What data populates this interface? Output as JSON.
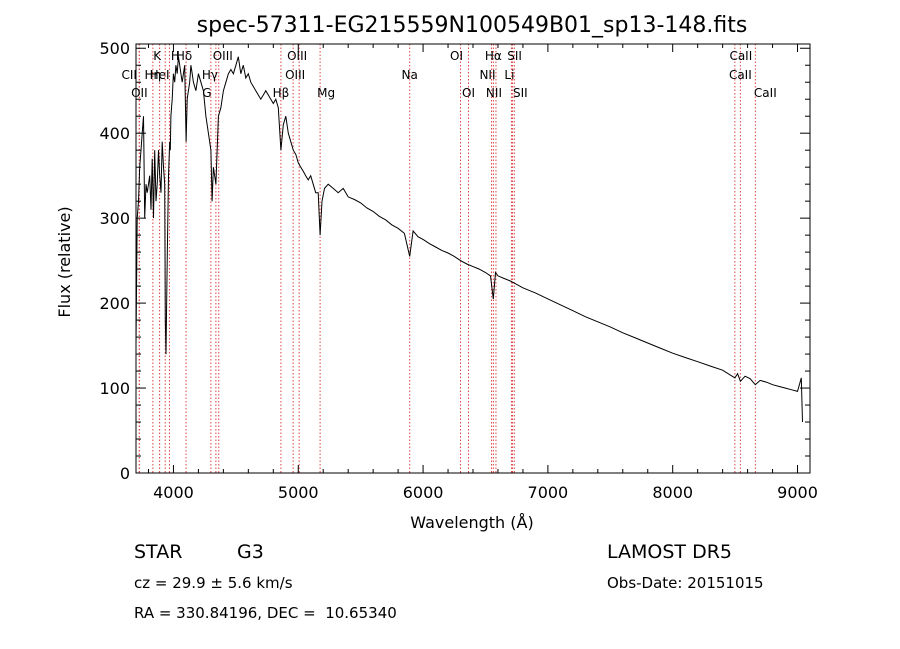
{
  "chart_data": {
    "type": "line",
    "title": "spec-57311-EG215559N100549B01_sp13-148.fits",
    "xlabel": "Wavelength (Å)",
    "ylabel": "Flux (relative)",
    "xlim": [
      3700,
      9100
    ],
    "ylim": [
      0,
      505
    ],
    "xticks": [
      4000,
      5000,
      6000,
      7000,
      8000,
      9000
    ],
    "yticks": [
      0,
      100,
      200,
      300,
      400,
      500
    ],
    "grid": false,
    "series": [
      {
        "color": "#000000",
        "x": [
          3700,
          3710,
          3720,
          3730,
          3740,
          3750,
          3760,
          3770,
          3780,
          3790,
          3800,
          3810,
          3820,
          3830,
          3840,
          3850,
          3860,
          3870,
          3880,
          3890,
          3900,
          3910,
          3920,
          3930,
          3935,
          3940,
          3950,
          3960,
          3970,
          3975,
          3980,
          3990,
          4000,
          4010,
          4020,
          4030,
          4040,
          4050,
          4060,
          4070,
          4080,
          4090,
          4101,
          4110,
          4120,
          4130,
          4140,
          4150,
          4160,
          4180,
          4200,
          4220,
          4240,
          4260,
          4280,
          4300,
          4310,
          4320,
          4340,
          4360,
          4380,
          4400,
          4420,
          4440,
          4460,
          4480,
          4500,
          4520,
          4540,
          4560,
          4580,
          4600,
          4620,
          4640,
          4660,
          4680,
          4700,
          4720,
          4740,
          4760,
          4780,
          4800,
          4820,
          4840,
          4861,
          4880,
          4900,
          4920,
          4940,
          4960,
          4980,
          5000,
          5020,
          5040,
          5060,
          5080,
          5100,
          5120,
          5140,
          5160,
          5175,
          5190,
          5210,
          5240,
          5280,
          5320,
          5360,
          5400,
          5450,
          5500,
          5550,
          5600,
          5650,
          5700,
          5750,
          5800,
          5850,
          5893,
          5920,
          5960,
          6000,
          6050,
          6100,
          6150,
          6200,
          6250,
          6300,
          6350,
          6400,
          6450,
          6500,
          6540,
          6563,
          6580,
          6600,
          6650,
          6700,
          6750,
          6800,
          6850,
          6900,
          7000,
          7100,
          7200,
          7300,
          7400,
          7500,
          7600,
          7700,
          7800,
          7900,
          8000,
          8100,
          8200,
          8300,
          8400,
          8498,
          8520,
          8542,
          8580,
          8620,
          8662,
          8700,
          8750,
          8800,
          8850,
          8900,
          8950,
          9000,
          9030,
          9040
        ],
        "values": [
          150,
          300,
          320,
          360,
          380,
          400,
          420,
          300,
          340,
          330,
          340,
          350,
          310,
          370,
          300,
          380,
          320,
          340,
          380,
          350,
          330,
          390,
          360,
          340,
          180,
          140,
          250,
          350,
          390,
          380,
          420,
          440,
          470,
          460,
          480,
          470,
          490,
          480,
          470,
          460,
          470,
          480,
          390,
          440,
          450,
          460,
          480,
          470,
          460,
          450,
          470,
          460,
          450,
          420,
          400,
          380,
          320,
          360,
          340,
          420,
          430,
          450,
          460,
          470,
          475,
          470,
          480,
          490,
          470,
          480,
          465,
          470,
          460,
          455,
          450,
          445,
          440,
          445,
          450,
          445,
          440,
          435,
          440,
          430,
          380,
          410,
          420,
          400,
          390,
          380,
          375,
          365,
          360,
          355,
          350,
          345,
          350,
          340,
          330,
          330,
          280,
          320,
          335,
          340,
          335,
          330,
          335,
          325,
          322,
          318,
          312,
          308,
          302,
          298,
          292,
          288,
          282,
          255,
          285,
          278,
          275,
          270,
          266,
          262,
          259,
          255,
          250,
          246,
          243,
          240,
          236,
          232,
          205,
          236,
          232,
          229,
          226,
          222,
          218,
          215,
          212,
          205,
          198,
          191,
          184,
          178,
          172,
          165,
          159,
          153,
          147,
          141,
          136,
          131,
          126,
          121,
          112,
          117,
          108,
          114,
          111,
          104,
          109,
          107,
          104,
          102,
          100,
          98,
          96,
          112,
          60
        ]
      }
    ],
    "line_markers": [
      {
        "label": "Hδ",
        "x": 4101
      },
      {
        "label": "K",
        "x": 3934
      },
      {
        "label": "H",
        "x": 3968
      },
      {
        "label": "CII",
        "x": 3726
      },
      {
        "label": "HeI",
        "x": 3889
      },
      {
        "label": "OII",
        "x": 3727
      },
      {
        "label": "Hη",
        "x": 3835
      },
      {
        "label": "Hγ",
        "x": 4340
      },
      {
        "label": "G",
        "x": 4300
      },
      {
        "label": "OIII",
        "x": 4363
      },
      {
        "label": "Hβ",
        "x": 4861
      },
      {
        "label": "OIII",
        "x": 4959
      },
      {
        "label": "OIII",
        "x": 5007
      },
      {
        "label": "Mg",
        "x": 5175
      },
      {
        "label": "Na",
        "x": 5893
      },
      {
        "label": "OI",
        "x": 6300
      },
      {
        "label": "OI",
        "x": 6364
      },
      {
        "label": "Hα",
        "x": 6563
      },
      {
        "label": "NII",
        "x": 6548
      },
      {
        "label": "NII",
        "x": 6584
      },
      {
        "label": "SII",
        "x": 6717
      },
      {
        "label": "Li",
        "x": 6708
      },
      {
        "label": "SII",
        "x": 6731
      },
      {
        "label": "CaII",
        "x": 8498
      },
      {
        "label": "CaII",
        "x": 8542
      },
      {
        "label": "CaII",
        "x": 8662
      }
    ]
  },
  "info": {
    "object_class": "STAR",
    "subclass": "G3",
    "cz": "cz = 29.9 ± 5.6 km/s",
    "coords": "RA = 330.84196, DEC =  10.65340",
    "survey": "LAMOST DR5",
    "obs_date": "Obs-Date: 20151015"
  }
}
